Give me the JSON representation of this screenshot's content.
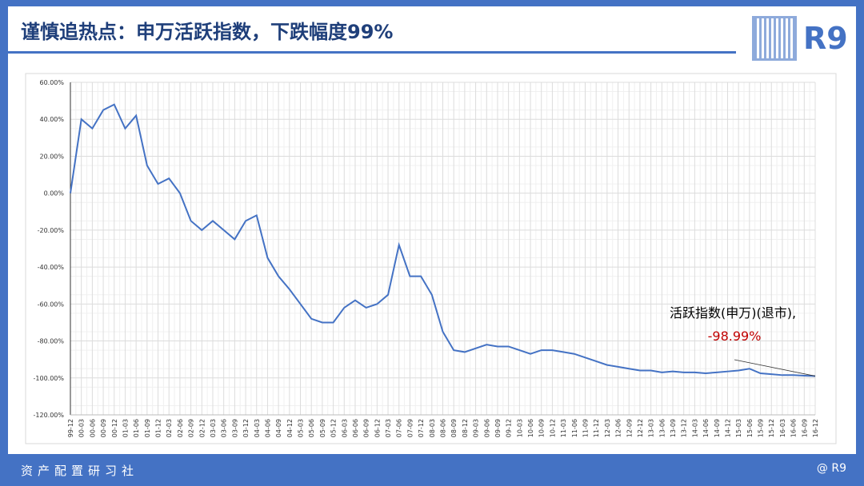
{
  "header": {
    "title": "谨慎追热点：申万活跃指数，下跌幅度99%",
    "logo": "R9"
  },
  "footer": {
    "left": "资产配置研习社",
    "right": "@ R9"
  },
  "chart_data": {
    "type": "line",
    "annotation": "活跃指数(申万)(退市),",
    "categories": [
      "99-12",
      "00-03",
      "00-06",
      "00-09",
      "00-12",
      "01-03",
      "01-06",
      "01-09",
      "01-12",
      "02-03",
      "02-06",
      "02-09",
      "02-12",
      "03-03",
      "03-06",
      "03-09",
      "03-12",
      "04-03",
      "04-06",
      "04-09",
      "04-12",
      "05-03",
      "05-06",
      "05-09",
      "05-12",
      "06-03",
      "06-06",
      "06-09",
      "06-12",
      "07-03",
      "07-06",
      "07-09",
      "07-12",
      "08-03",
      "08-06",
      "08-09",
      "08-12",
      "09-03",
      "09-06",
      "09-09",
      "09-12",
      "10-03",
      "10-06",
      "10-09",
      "10-12",
      "11-03",
      "11-06",
      "11-09",
      "11-12",
      "12-03",
      "12-06",
      "12-09",
      "12-12",
      "13-03",
      "13-06",
      "13-09",
      "13-12",
      "14-03",
      "14-06",
      "14-09",
      "14-12",
      "15-03",
      "15-06",
      "15-09",
      "15-12",
      "16-03",
      "16-06",
      "16-09",
      "16-12"
    ],
    "series": [
      {
        "name": "活跃指数(申万)(退市)",
        "color": "#4472c4",
        "values": [
          0,
          40,
          35,
          45,
          48,
          35,
          42,
          15,
          5,
          8,
          0,
          -15,
          -20,
          -15,
          -20,
          -25,
          -15,
          -12,
          -35,
          -45,
          -52,
          -60,
          -68,
          -70,
          -70,
          -62,
          -58,
          -62,
          -60,
          -55,
          -28,
          -45,
          -45,
          -55,
          -75,
          -85,
          -86,
          -84,
          -82,
          -83,
          -83,
          -85,
          -87,
          -85,
          -85,
          -86,
          -87,
          -89,
          -91,
          -93,
          -94,
          -95,
          -96,
          -96,
          -97,
          -96.5,
          -97,
          -97,
          -97.5,
          -97,
          -96.5,
          -96,
          -95,
          -97.5,
          -98,
          -98.5,
          -98.5,
          -98.8,
          -98.99
        ],
        "value_labels": [
          null,
          null,
          null,
          null,
          null,
          null,
          null,
          null,
          null,
          null,
          null,
          null,
          null,
          null,
          null,
          null,
          null,
          null,
          null,
          null,
          null,
          null,
          null,
          null,
          null,
          null,
          null,
          null,
          null,
          null,
          null,
          null,
          null,
          null,
          null,
          null,
          null,
          null,
          null,
          null,
          null,
          null,
          null,
          null,
          null,
          null,
          null,
          null,
          null,
          null,
          null,
          null,
          null,
          null,
          null,
          null,
          null,
          null,
          null,
          null,
          null,
          null,
          null,
          null,
          null,
          null,
          null,
          null,
          "-98.99%"
        ]
      }
    ],
    "ylim": [
      -120,
      60
    ],
    "yticks": [
      {
        "value": -120,
        "label": "-120.00%"
      },
      {
        "value": -100,
        "label": "-100.00%"
      },
      {
        "value": -80,
        "label": "-80.00%"
      },
      {
        "value": -60,
        "label": "-60.00%"
      },
      {
        "value": -40,
        "label": "-40.00%"
      },
      {
        "value": -20,
        "label": "-20.00%"
      },
      {
        "value": 0,
        "label": "0.00%"
      },
      {
        "value": 20,
        "label": "20.00%"
      },
      {
        "value": 40,
        "label": "40.00%"
      },
      {
        "value": 60,
        "label": "60.00%"
      }
    ],
    "grid": true
  }
}
